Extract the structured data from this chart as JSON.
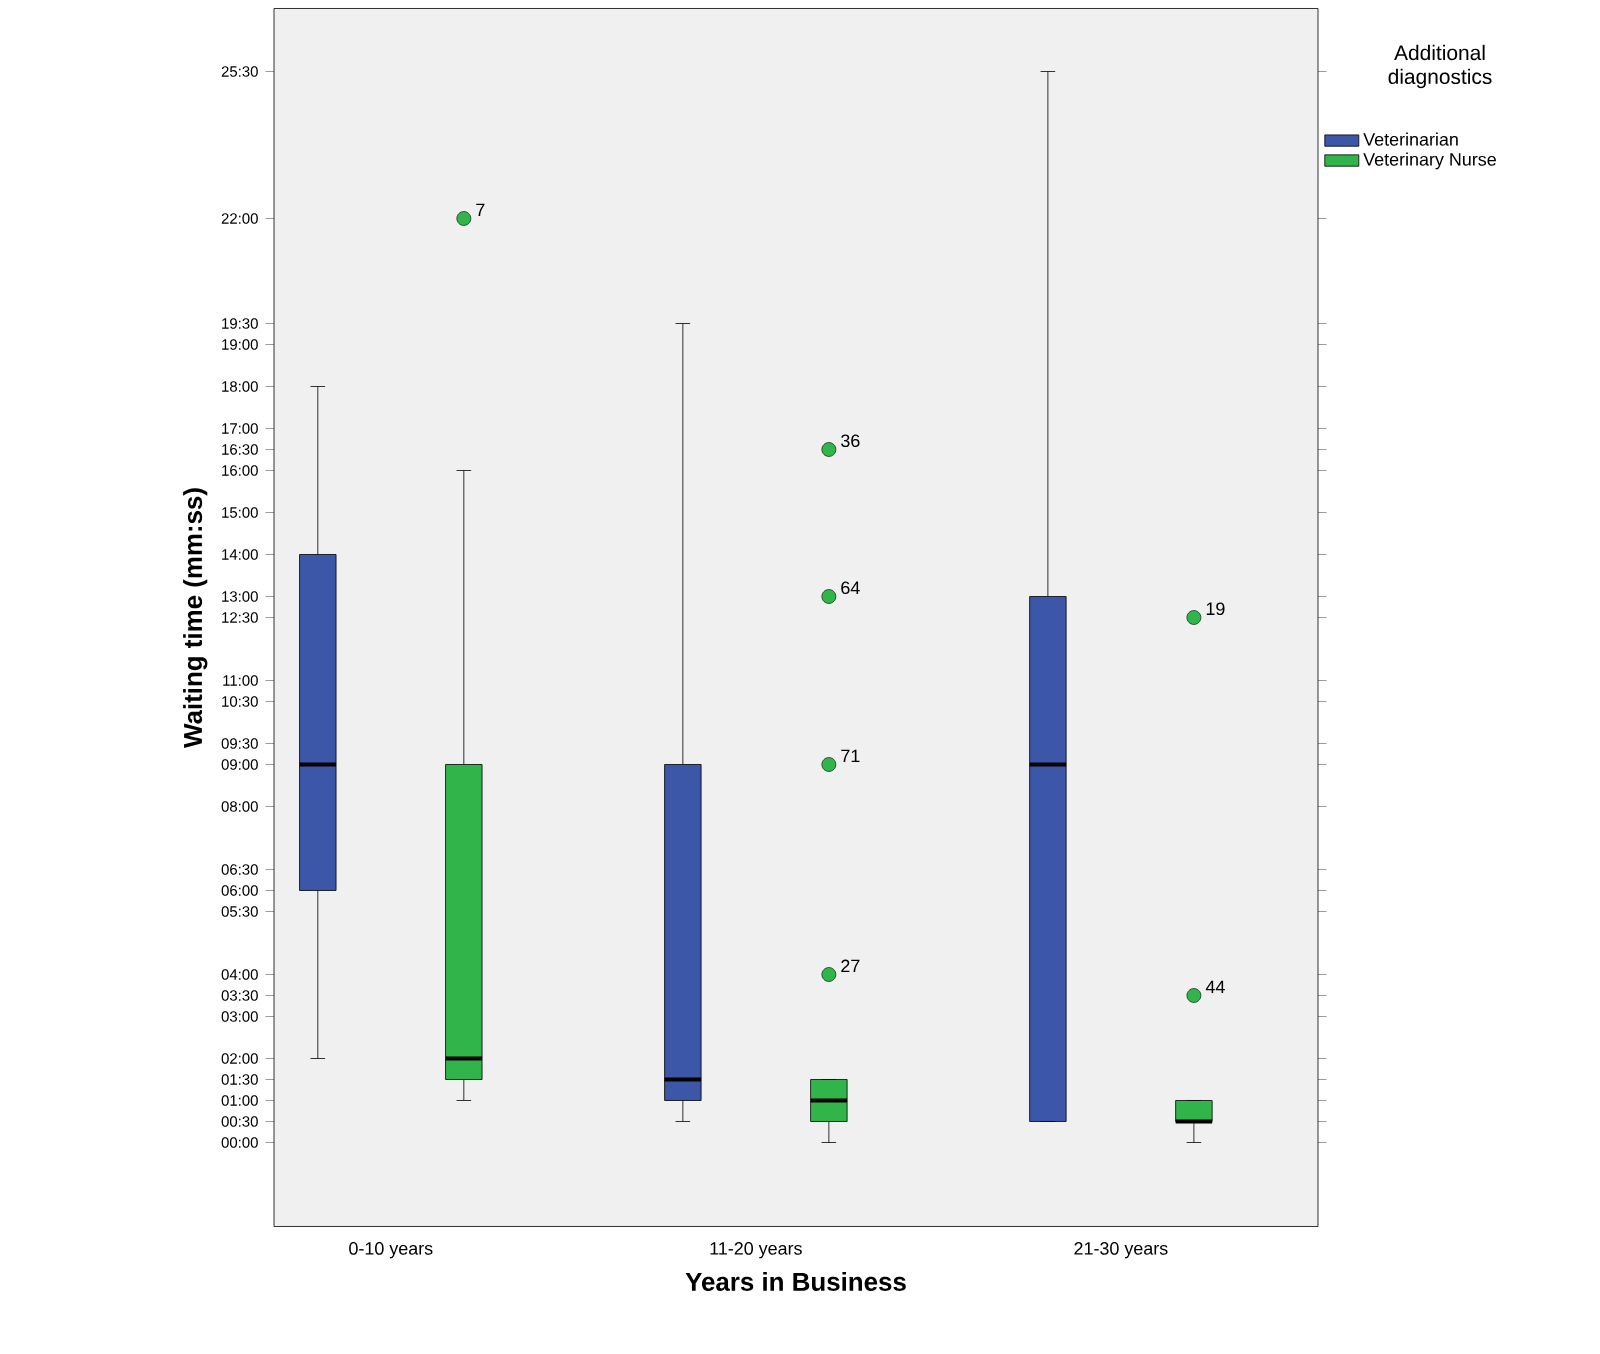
{
  "chart_data": {
    "type": "box",
    "xlabel": "Years in Business",
    "ylabel": "Waiting time (mm:ss)",
    "legend_title": "Additional diagnostics",
    "legend": "right",
    "grid": false,
    "categories": [
      "0-10 years",
      "11-20 years",
      "21-30 years"
    ],
    "ylim": [
      -2,
      27
    ],
    "yticks": [
      {
        "value": 0,
        "label": "00:00"
      },
      {
        "value": 0.5,
        "label": "00:30"
      },
      {
        "value": 1,
        "label": "01:00"
      },
      {
        "value": 1.5,
        "label": "01:30"
      },
      {
        "value": 2,
        "label": "02:00"
      },
      {
        "value": 3,
        "label": "03:00"
      },
      {
        "value": 3.5,
        "label": "03:30"
      },
      {
        "value": 4,
        "label": "04:00"
      },
      {
        "value": 5.5,
        "label": "05:30"
      },
      {
        "value": 6,
        "label": "06:00"
      },
      {
        "value": 6.5,
        "label": "06:30"
      },
      {
        "value": 8,
        "label": "08:00"
      },
      {
        "value": 9,
        "label": "09:00"
      },
      {
        "value": 9.5,
        "label": "09:30"
      },
      {
        "value": 10.5,
        "label": "10:30"
      },
      {
        "value": 11,
        "label": "11:00"
      },
      {
        "value": 12.5,
        "label": "12:30"
      },
      {
        "value": 13,
        "label": "13:00"
      },
      {
        "value": 14,
        "label": "14:00"
      },
      {
        "value": 15,
        "label": "15:00"
      },
      {
        "value": 16,
        "label": "16:00"
      },
      {
        "value": 16.5,
        "label": "16:30"
      },
      {
        "value": 17,
        "label": "17:00"
      },
      {
        "value": 18,
        "label": "18:00"
      },
      {
        "value": 19,
        "label": "19:00"
      },
      {
        "value": 19.5,
        "label": "19:30"
      },
      {
        "value": 22,
        "label": "22:00"
      },
      {
        "value": 25.5,
        "label": "25:30"
      }
    ],
    "series": [
      {
        "name": "Veterinarian",
        "color": "#3c56a8",
        "boxes": [
          {
            "low": 2,
            "q1": 6,
            "median": 9,
            "q3": 14,
            "high": 18
          },
          {
            "low": 0.5,
            "q1": 1,
            "median": 1.5,
            "q3": 9,
            "high": 19.5
          },
          {
            "low": 0.5,
            "q1": 0.5,
            "median": 9,
            "q3": 13,
            "high": 25.5
          }
        ]
      },
      {
        "name": "Veterinary Nurse",
        "color": "#31b54a",
        "boxes": [
          {
            "low": 1,
            "q1": 1.5,
            "median": 2,
            "q3": 9,
            "high": 16,
            "outliers": [
              22
            ]
          },
          {
            "low": 0,
            "q1": 0.5,
            "median": 1,
            "q3": 1.5,
            "high": 1.5,
            "outliers": [
              16.5,
              13,
              9,
              4
            ]
          },
          {
            "low": 0,
            "q1": 0.5,
            "median": 0.5,
            "q3": 1,
            "high": 1,
            "outliers": [
              12.5,
              3.5
            ]
          }
        ]
      }
    ],
    "annotations": [
      "7",
      "36",
      "64",
      "71",
      "27",
      "19",
      "44"
    ]
  }
}
